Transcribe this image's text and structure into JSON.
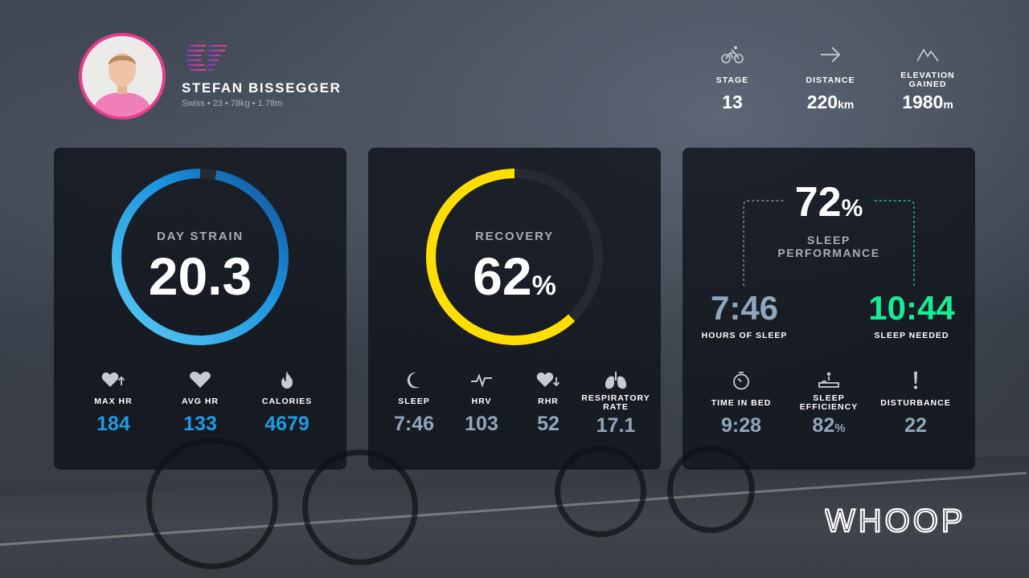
{
  "athlete": {
    "name": "STEFAN BISSEGGER",
    "meta": "Swiss • 23 • 78kg • 1.78m",
    "team_logo": "EF"
  },
  "stage_stats": [
    {
      "icon": "cyclist-icon",
      "label": "STAGE",
      "value": "13",
      "unit": ""
    },
    {
      "icon": "arrow-right-icon",
      "label": "DISTANCE",
      "value": "220",
      "unit": "km"
    },
    {
      "icon": "mountain-icon",
      "label": "ELEVATION GAINED",
      "value": "1980",
      "unit": "m"
    }
  ],
  "strain": {
    "label": "DAY STRAIN",
    "value": "20.3",
    "fraction": 0.97,
    "metrics": [
      {
        "icon": "heart-up-icon",
        "label": "MAX HR",
        "value": "184"
      },
      {
        "icon": "heart-icon",
        "label": "AVG HR",
        "value": "133"
      },
      {
        "icon": "flame-icon",
        "label": "CALORIES",
        "value": "4679"
      }
    ]
  },
  "recovery": {
    "label": "RECOVERY",
    "value": "62",
    "unit": "%",
    "fraction": 0.62,
    "metrics": [
      {
        "icon": "moon-icon",
        "label": "SLEEP",
        "value": "7:46"
      },
      {
        "icon": "pulse-icon",
        "label": "HRV",
        "value": "103"
      },
      {
        "icon": "heart-down-icon",
        "label": "RHR",
        "value": "52"
      },
      {
        "icon": "lungs-icon",
        "label": "RESPIRATORY RATE",
        "value": "17.1"
      }
    ]
  },
  "sleep": {
    "performance_value": "72",
    "performance_unit": "%",
    "performance_label": "SLEEP PERFORMANCE",
    "hours_of_sleep": "7:46",
    "hours_of_sleep_label": "HOURS OF SLEEP",
    "sleep_needed": "10:44",
    "sleep_needed_label": "SLEEP NEEDED",
    "metrics": [
      {
        "icon": "stopwatch-icon",
        "label": "TIME IN BED",
        "value": "9:28",
        "unit": ""
      },
      {
        "icon": "bed-icon",
        "label": "SLEEP EFFICIENCY",
        "value": "82",
        "unit": "%"
      },
      {
        "icon": "exclamation-icon",
        "label": "DISTURBANCE",
        "value": "22",
        "unit": ""
      }
    ]
  },
  "brand": "WHOOP",
  "colors": {
    "strain_blue": "#1e9be6",
    "recovery_yellow": "#ffde00",
    "sleep_green": "#16ec94",
    "sleep_gray": "#8fa6bd",
    "avatar_border": "#e63d8c"
  }
}
